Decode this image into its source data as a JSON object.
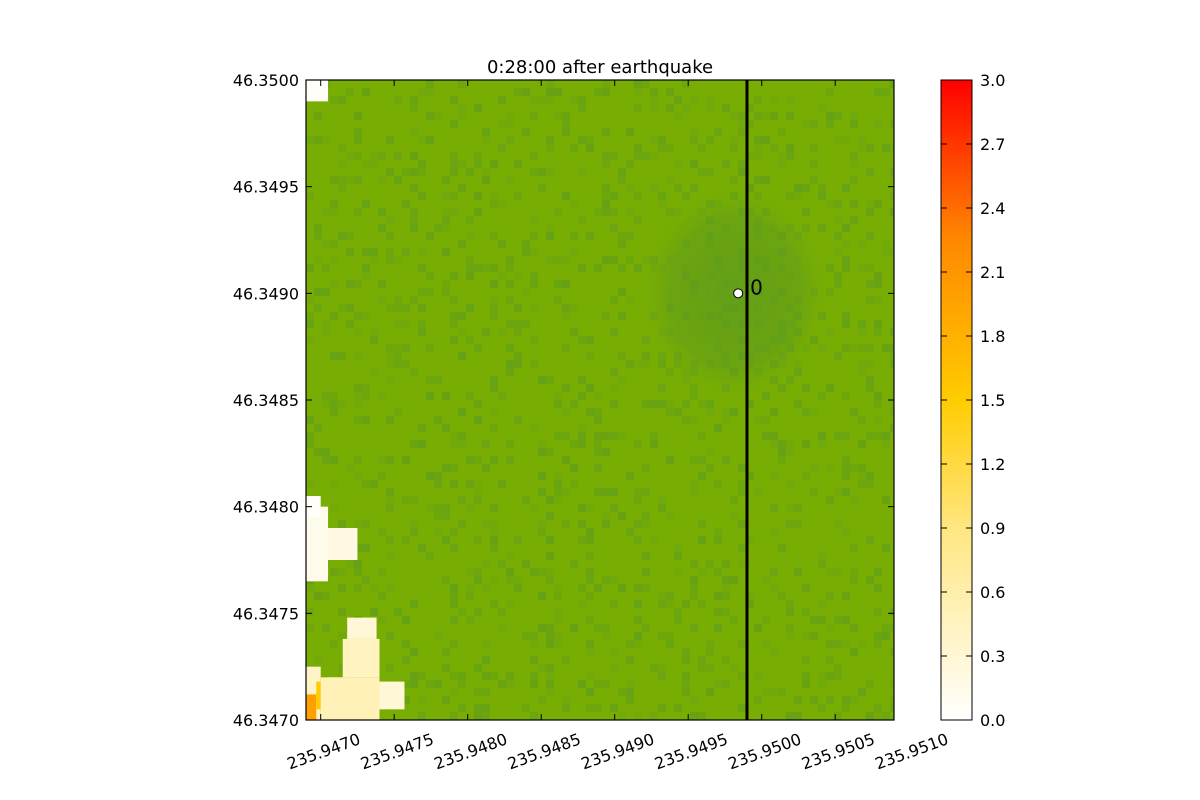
{
  "chart_data": {
    "type": "heatmap",
    "title": "0:28:00 after earthquake",
    "xlim": [
      235.9469,
      235.9509
    ],
    "ylim": [
      46.347,
      46.35
    ],
    "x_ticks": [
      "235.9470",
      "235.9475",
      "235.9480",
      "235.9485",
      "235.9490",
      "235.9495",
      "235.9500",
      "235.9505",
      "235.9510"
    ],
    "x_tick_values": [
      235.947,
      235.9475,
      235.948,
      235.9485,
      235.949,
      235.9495,
      235.95,
      235.9505,
      235.951
    ],
    "y_ticks": [
      "46.3470",
      "46.3475",
      "46.3480",
      "46.3485",
      "46.3490",
      "46.3495",
      "46.3500"
    ],
    "y_tick_values": [
      46.347,
      46.3475,
      46.348,
      46.3485,
      46.349,
      46.3495,
      46.35
    ],
    "colorbar": {
      "range": [
        0.0,
        3.0
      ],
      "ticks": [
        "0.0",
        "0.3",
        "0.6",
        "0.9",
        "1.2",
        "1.5",
        "1.8",
        "2.1",
        "2.4",
        "2.7",
        "3.0"
      ],
      "tick_values": [
        0.0,
        0.3,
        0.6,
        0.9,
        1.2,
        1.5,
        1.8,
        2.1,
        2.4,
        2.7,
        3.0
      ],
      "colors": [
        "#ffffff",
        "#ffe680",
        "#ffcc00",
        "#ff8800",
        "#ff0000"
      ]
    },
    "dry_land_color": "#78ad04",
    "dry_land_dark_color": "#5b9a20",
    "gauge": {
      "label": "0",
      "x": 235.94984,
      "y": 46.349
    },
    "transect_line_x": 235.9499,
    "inundation_patches": [
      {
        "x0": 235.9469,
        "x1": 235.94705,
        "y0": 46.3499,
        "y1": 46.35,
        "value": 0.05
      },
      {
        "x0": 235.9469,
        "x1": 235.94725,
        "y0": 46.34775,
        "y1": 46.3479,
        "value": 0.2
      },
      {
        "x0": 235.9469,
        "x1": 235.94705,
        "y0": 46.34765,
        "y1": 46.348,
        "value": 0.15
      },
      {
        "x0": 235.9469,
        "x1": 235.947,
        "y0": 46.34795,
        "y1": 46.34805,
        "value": 0.05
      },
      {
        "x0": 235.9469,
        "x1": 235.947,
        "y0": 46.347,
        "y1": 46.34725,
        "value": 0.4
      },
      {
        "x0": 235.9469,
        "x1": 235.94697,
        "y0": 46.347,
        "y1": 46.34712,
        "value": 2.0
      },
      {
        "x0": 235.94697,
        "x1": 235.94705,
        "y0": 46.34705,
        "y1": 46.34718,
        "value": 1.5
      },
      {
        "x0": 235.94705,
        "x1": 235.94718,
        "y0": 46.3471,
        "y1": 46.3472,
        "value": 1.0
      },
      {
        "x0": 235.94715,
        "x1": 235.9474,
        "y0": 46.3472,
        "y1": 46.34738,
        "value": 0.45
      },
      {
        "x0": 235.94718,
        "x1": 235.94738,
        "y0": 46.34738,
        "y1": 46.34748,
        "value": 0.3
      },
      {
        "x0": 235.9474,
        "x1": 235.94757,
        "y0": 46.34705,
        "y1": 46.34718,
        "value": 0.3
      },
      {
        "x0": 235.947,
        "x1": 235.9474,
        "y0": 46.347,
        "y1": 46.3472,
        "value": 0.5
      }
    ]
  }
}
